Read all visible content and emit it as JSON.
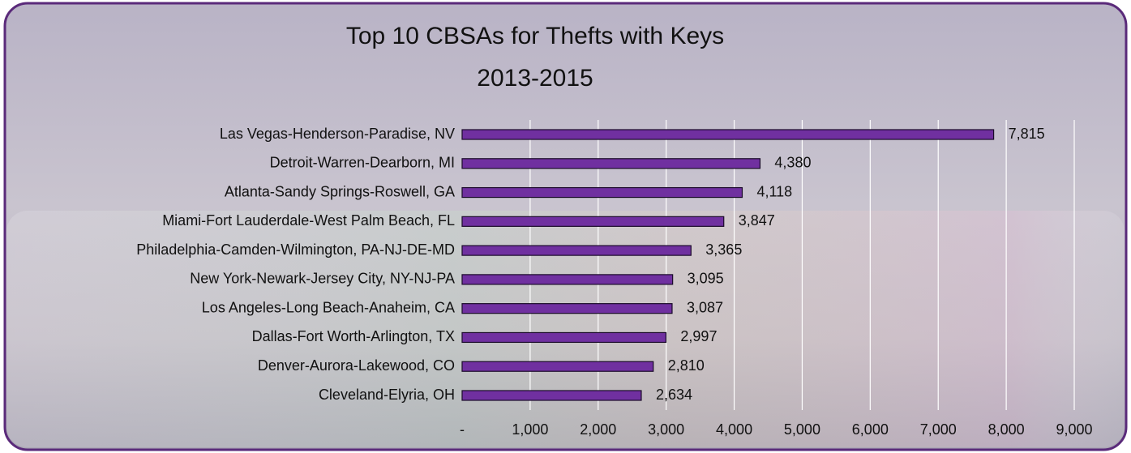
{
  "chart_data": {
    "type": "hbar",
    "title": "Top 10 CBSAs for Thefts with Keys",
    "subtitle": "2013-2015",
    "categories": [
      "Las Vegas-Henderson-Paradise, NV",
      "Detroit-Warren-Dearborn, MI",
      "Atlanta-Sandy Springs-Roswell, GA",
      "Miami-Fort Lauderdale-West Palm Beach, FL",
      "Philadelphia-Camden-Wilmington, PA-NJ-DE-MD",
      "New York-Newark-Jersey City, NY-NJ-PA",
      "Los Angeles-Long Beach-Anaheim, CA",
      "Dallas-Fort Worth-Arlington, TX",
      "Denver-Aurora-Lakewood, CO",
      "Cleveland-Elyria, OH"
    ],
    "values": [
      7815,
      4380,
      4118,
      3847,
      3365,
      3095,
      3087,
      2997,
      2810,
      2634
    ],
    "value_labels": [
      "7,815",
      "4,380",
      "4,118",
      "3,847",
      "3,365",
      "3,095",
      "3,087",
      "2,997",
      "2,810",
      "2,634"
    ],
    "color": "#7030a0",
    "xlim": [
      0,
      9000
    ],
    "xticks": [
      {
        "value": 0,
        "label": "-"
      },
      {
        "value": 1000,
        "label": "1,000"
      },
      {
        "value": 2000,
        "label": "2,000"
      },
      {
        "value": 3000,
        "label": "3,000"
      },
      {
        "value": 4000,
        "label": "4,000"
      },
      {
        "value": 5000,
        "label": "5,000"
      },
      {
        "value": 6000,
        "label": "6,000"
      },
      {
        "value": 7000,
        "label": "7,000"
      },
      {
        "value": 8000,
        "label": "8,000"
      },
      {
        "value": 9000,
        "label": "9,000"
      }
    ],
    "grid": true
  }
}
